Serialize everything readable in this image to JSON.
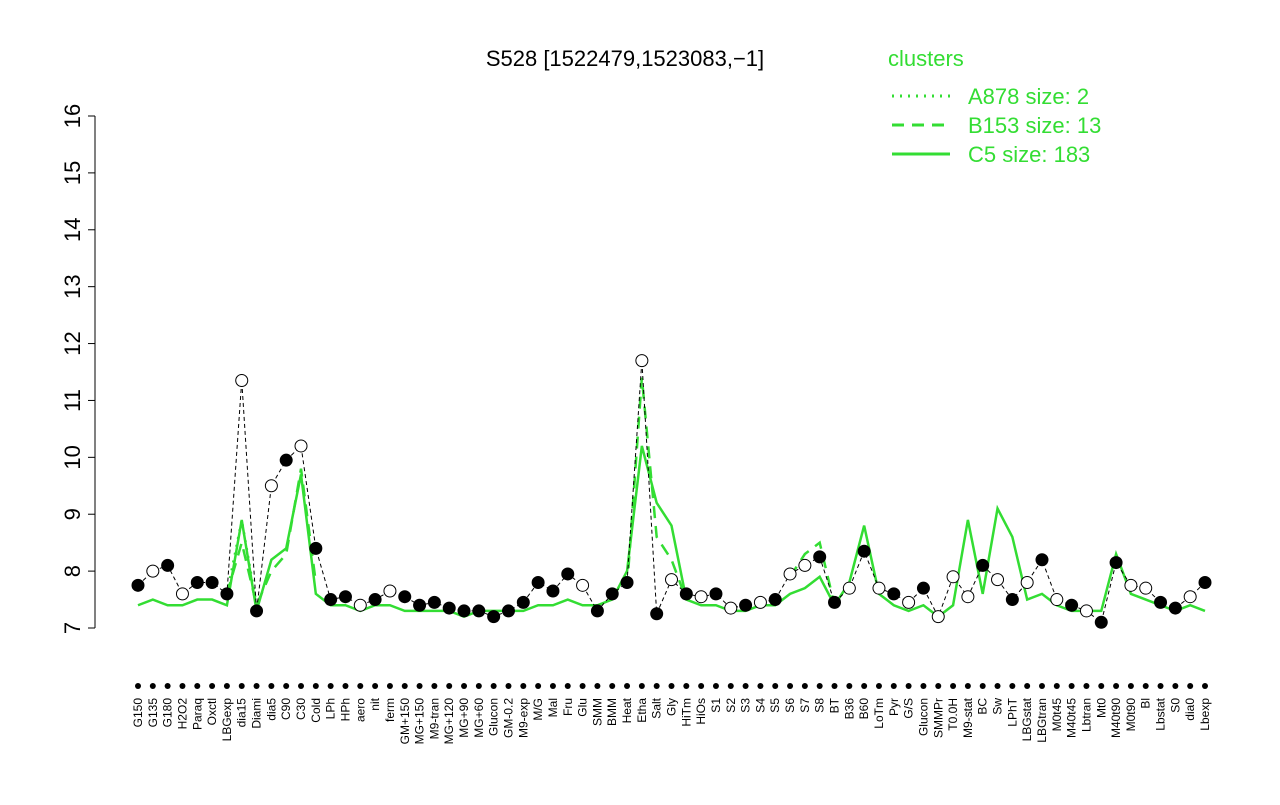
{
  "chart_data": {
    "type": "line",
    "title": "S528 [1522479,1523083,−1]",
    "legend_title": "clusters",
    "legend_position": "top-right",
    "legend_color": "#33dd33",
    "ylim": [
      7,
      16
    ],
    "yticks": [
      7,
      8,
      9,
      10,
      11,
      12,
      13,
      14,
      15,
      16
    ],
    "categories": [
      "G150",
      "G135",
      "G180",
      "H2O2",
      "Paraq",
      "Oxctl",
      "LBGexp",
      "dia15",
      "Diami",
      "dia5",
      "C90",
      "C30",
      "Cold",
      "LPh",
      "HPh",
      "aero",
      "nit",
      "ferm",
      "GM+150",
      "MG+150",
      "M9-tran",
      "MG+120",
      "MG+90",
      "MG+60",
      "Glucon",
      "GM-0.2",
      "M9-exp",
      "M/G",
      "Mal",
      "Fru",
      "Glu",
      "SMM",
      "BMM",
      "Heat",
      "Etha",
      "Salt",
      "Gly",
      "HiTm",
      "HiOs",
      "S1",
      "S2",
      "S3",
      "S4",
      "S5",
      "S6",
      "S7",
      "S8",
      "BT",
      "B36",
      "B60",
      "LoTm",
      "Pyr",
      "G/S",
      "Glucon",
      "SMMPr",
      "T0.0H",
      "M9-stat",
      "BC",
      "Sw",
      "LPhT",
      "LBGstat",
      "LBGtran",
      "M0t45",
      "M40t45",
      "Lbtran",
      "Mt0",
      "M40t90",
      "M0t90",
      "Bl",
      "Lbstat",
      "S0",
      "dia0",
      "Lbexp"
    ],
    "values": [
      7.75,
      8.0,
      8.1,
      7.6,
      7.8,
      7.8,
      7.6,
      11.35,
      7.3,
      9.5,
      9.95,
      10.2,
      8.4,
      7.5,
      7.55,
      7.4,
      7.5,
      7.65,
      7.55,
      7.4,
      7.45,
      7.35,
      7.3,
      7.3,
      7.2,
      7.3,
      7.45,
      7.8,
      7.65,
      7.95,
      7.75,
      7.3,
      7.6,
      7.8,
      11.7,
      7.25,
      7.85,
      7.6,
      7.55,
      7.6,
      7.35,
      7.4,
      7.45,
      7.5,
      7.95,
      8.1,
      8.25,
      7.45,
      7.7,
      8.35,
      7.7,
      7.6,
      7.45,
      7.7,
      7.2,
      7.9,
      7.55,
      8.1,
      7.85,
      7.5,
      7.8,
      8.2,
      7.5,
      7.4,
      7.3,
      7.1,
      8.15,
      7.75,
      7.7,
      7.45,
      7.35,
      7.55,
      7.8
    ],
    "point_fills": [
      "black",
      "white",
      "black",
      "white",
      "black",
      "black",
      "black",
      "white",
      "black",
      "white",
      "black",
      "white",
      "black",
      "black",
      "black",
      "white",
      "black",
      "white",
      "black",
      "black",
      "black",
      "black",
      "black",
      "black",
      "black",
      "black",
      "black",
      "black",
      "black",
      "black",
      "white",
      "black",
      "black",
      "black",
      "white",
      "black",
      "white",
      "black",
      "white",
      "black",
      "white",
      "black",
      "white",
      "black",
      "white",
      "white",
      "black",
      "black",
      "white",
      "black",
      "white",
      "black",
      "white",
      "black",
      "white",
      "white",
      "white",
      "black",
      "white",
      "black",
      "white",
      "black",
      "white",
      "black",
      "white",
      "black",
      "black",
      "white",
      "white",
      "black",
      "black",
      "white",
      "black"
    ],
    "point_line_color": "#000000",
    "series": [
      {
        "name": "A878 size: 2",
        "color": "#33dd33",
        "dash": "dotted",
        "values": [
          null,
          null,
          null,
          null,
          null,
          null,
          7.6,
          8.9,
          7.4,
          null,
          null,
          null,
          null,
          null,
          null,
          null,
          null,
          null,
          null,
          null,
          null,
          null,
          null,
          null,
          null,
          null,
          null,
          null,
          null,
          null,
          null,
          null,
          null,
          null,
          null,
          null,
          null,
          null,
          null,
          null,
          null,
          null,
          null,
          null,
          null,
          null,
          null,
          null,
          null,
          null,
          null,
          null,
          null,
          null,
          null,
          null,
          null,
          null,
          null,
          null,
          null,
          null,
          null,
          null,
          null,
          null,
          null,
          null,
          null,
          null,
          null,
          null,
          null
        ]
      },
      {
        "name": "B153 size: 13",
        "color": "#33dd33",
        "dash": "dashed",
        "values": [
          null,
          null,
          null,
          null,
          null,
          null,
          7.6,
          8.5,
          7.4,
          8.0,
          8.3,
          9.8,
          7.8,
          null,
          null,
          null,
          null,
          null,
          null,
          null,
          null,
          null,
          null,
          null,
          null,
          null,
          null,
          null,
          null,
          null,
          null,
          null,
          null,
          7.7,
          11.4,
          8.6,
          8.2,
          7.5,
          null,
          null,
          null,
          null,
          null,
          null,
          7.9,
          8.3,
          8.5,
          7.4,
          null,
          null,
          null,
          null,
          null,
          null,
          null,
          null,
          null,
          null,
          null,
          null,
          null,
          null,
          null,
          null,
          null,
          null,
          null,
          null,
          null,
          null,
          null,
          null,
          null
        ]
      },
      {
        "name": "C5 size: 183",
        "color": "#33dd33",
        "dash": "solid",
        "values": [
          7.4,
          7.5,
          7.4,
          7.4,
          7.5,
          7.5,
          7.4,
          8.9,
          7.3,
          8.2,
          8.4,
          9.7,
          7.6,
          7.4,
          7.4,
          7.3,
          7.4,
          7.4,
          7.3,
          7.3,
          7.3,
          7.3,
          7.2,
          7.3,
          7.3,
          7.3,
          7.3,
          7.4,
          7.4,
          7.5,
          7.4,
          7.4,
          7.5,
          8.0,
          10.2,
          9.2,
          8.8,
          7.5,
          7.4,
          7.4,
          7.3,
          7.3,
          7.4,
          7.4,
          7.6,
          7.7,
          7.9,
          7.4,
          7.8,
          8.8,
          7.6,
          7.4,
          7.3,
          7.4,
          7.2,
          7.4,
          8.9,
          7.6,
          9.1,
          8.6,
          7.5,
          7.6,
          7.4,
          7.3,
          7.3,
          7.3,
          8.3,
          7.6,
          7.5,
          7.4,
          7.3,
          7.4,
          7.3
        ]
      }
    ]
  }
}
